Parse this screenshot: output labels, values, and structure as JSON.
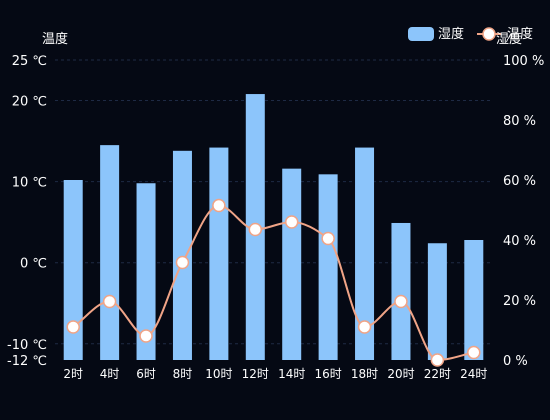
{
  "chart_data": {
    "type": "bar",
    "categories": [
      "2时",
      "4时",
      "6时",
      "8时",
      "10时",
      "12时",
      "14时",
      "16时",
      "18时",
      "20时",
      "22时",
      "24时"
    ],
    "y_left": {
      "label": "温度",
      "ticks": [
        "25 ℃",
        "20 ℃",
        "10 ℃",
        "0 ℃",
        "-10 ℃",
        "-12 ℃"
      ],
      "tick_values": [
        25,
        20,
        10,
        0,
        -10,
        -12
      ],
      "range": [
        -12,
        25
      ]
    },
    "y_right": {
      "label": "湿度",
      "ticks": [
        "100 %",
        "80 %",
        "60 %",
        "40 %",
        "20 %",
        "0 %"
      ],
      "tick_values": [
        100,
        80,
        60,
        40,
        20,
        0
      ],
      "range": [
        0,
        100
      ]
    },
    "series": [
      {
        "name": "湿度",
        "type": "bar",
        "axis": "left",
        "color": "#8cc5fb",
        "values": [
          10.2,
          14.5,
          9.8,
          13.8,
          14.2,
          20.8,
          11.6,
          10.9,
          14.2,
          4.9,
          2.4,
          2.8
        ]
      },
      {
        "name": "温度",
        "type": "line",
        "axis": "right",
        "color": "#f0a487",
        "values": [
          11,
          19.5,
          8,
          32.5,
          51.5,
          43.5,
          46,
          40.5,
          11,
          19.5,
          0,
          2.5
        ]
      }
    ],
    "legend": {
      "position": "top-right"
    },
    "grid": true
  }
}
